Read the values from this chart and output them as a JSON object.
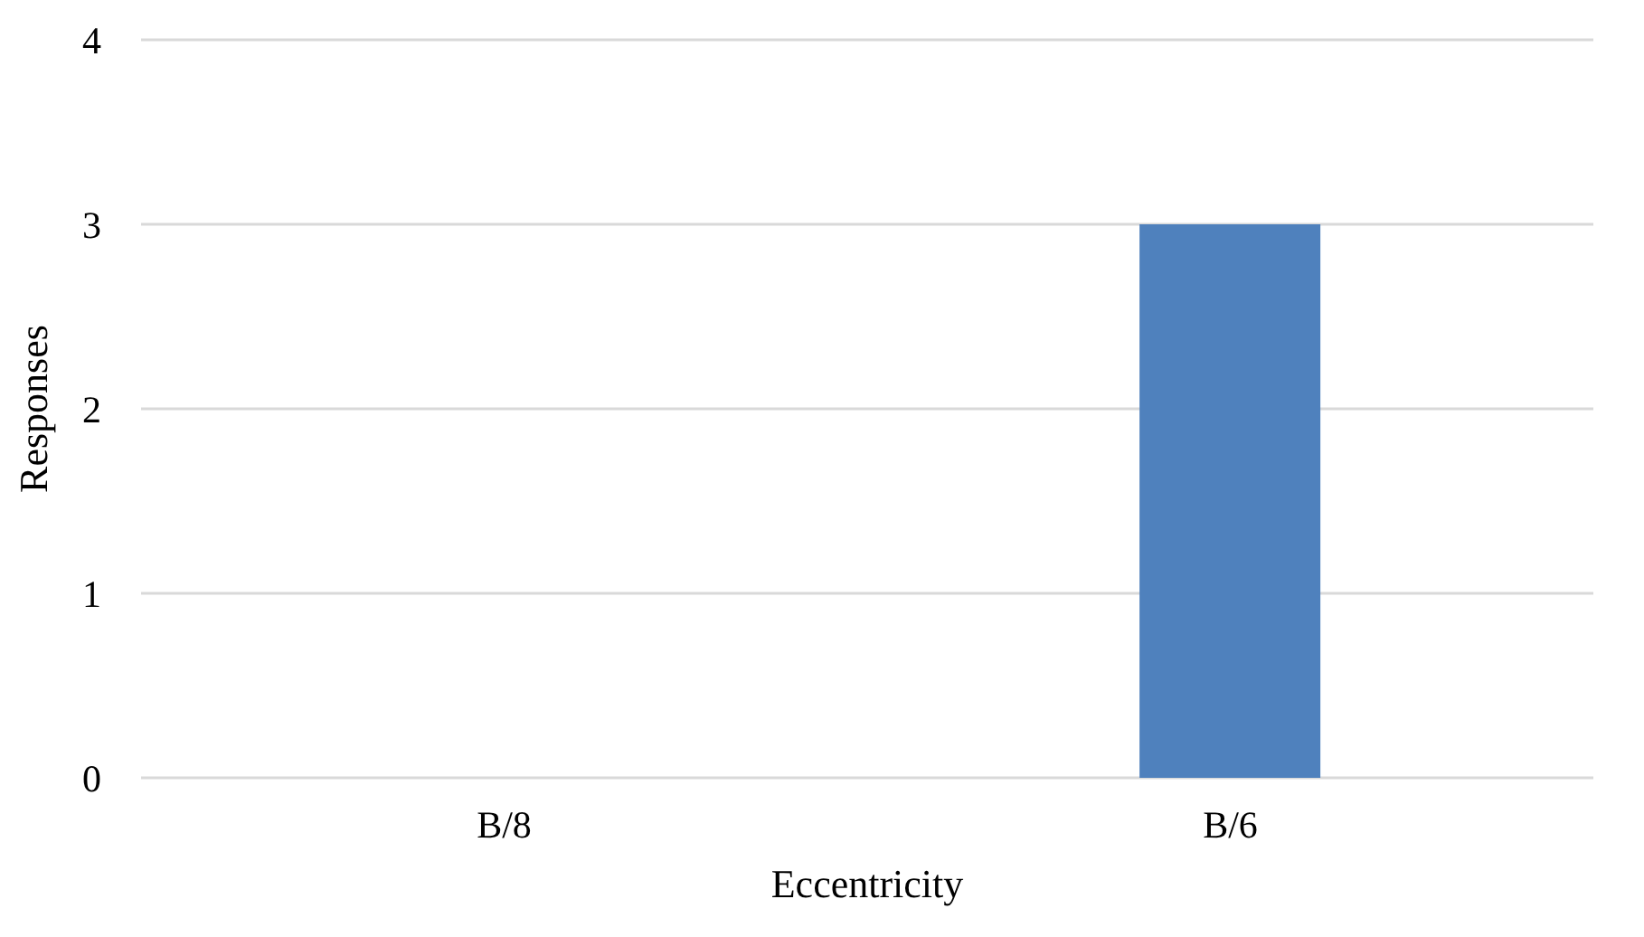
{
  "chart_data": {
    "type": "bar",
    "xlabel": "Eccentricity",
    "ylabel": "Responses",
    "categories": [
      "B/8",
      "B/6"
    ],
    "values": [
      0,
      3
    ],
    "color": "#4f81bd",
    "ylim": [
      0,
      4
    ],
    "yticks": [
      0,
      1,
      2,
      3,
      4
    ],
    "grid": "y"
  }
}
